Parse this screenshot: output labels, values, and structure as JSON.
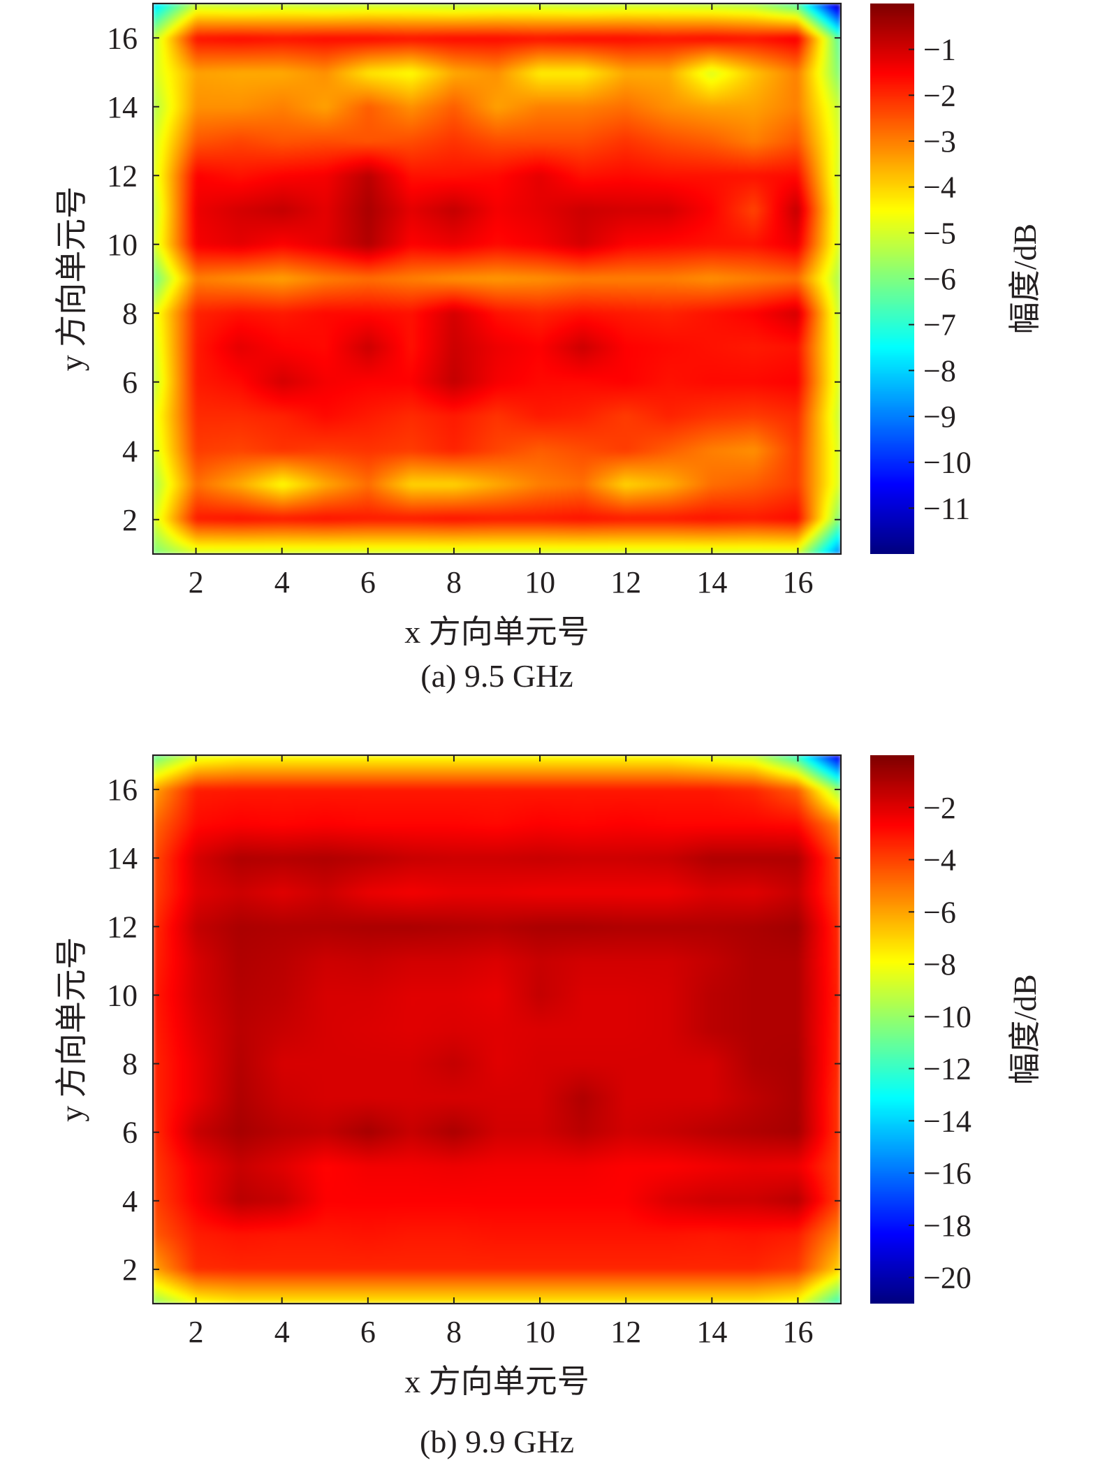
{
  "chart_data": [
    {
      "type": "heatmap",
      "caption": "(a) 9.5 GHz",
      "xlabel": "x 方向单元号",
      "ylabel": "y 方向单元号",
      "xlim": [
        1,
        17
      ],
      "ylim": [
        1,
        17
      ],
      "xticks": [
        2,
        4,
        6,
        8,
        10,
        12,
        14,
        16
      ],
      "yticks": [
        2,
        4,
        6,
        8,
        10,
        12,
        14,
        16
      ],
      "colorbar": {
        "label": "幅度/dB",
        "min": -12,
        "max": 0,
        "ticks": [
          -1,
          -2,
          -3,
          -4,
          -5,
          -6,
          -7,
          -8,
          -9,
          -10,
          -11
        ],
        "colormap": "jet"
      },
      "grid": false,
      "x": [
        1,
        2,
        3,
        4,
        5,
        6,
        7,
        8,
        9,
        10,
        11,
        12,
        13,
        14,
        15,
        16,
        17
      ],
      "y": [
        1,
        2,
        3,
        4,
        5,
        6,
        7,
        8,
        9,
        10,
        11,
        12,
        13,
        14,
        15,
        16,
        17
      ],
      "z": [
        [
          -6,
          -5,
          -5,
          -5,
          -5,
          -5,
          -5,
          -5,
          -5,
          -5,
          -5,
          -5,
          -5,
          -5,
          -5,
          -5,
          -9
        ],
        [
          -5,
          -1.8,
          -1.7,
          -1.8,
          -1.7,
          -1.8,
          -1.8,
          -1.7,
          -1.8,
          -1.8,
          -1.7,
          -1.8,
          -1.8,
          -1.7,
          -1.8,
          -1.6,
          -6
        ],
        [
          -5.5,
          -2.8,
          -3.5,
          -4.5,
          -3.5,
          -2.8,
          -4,
          -4,
          -3.5,
          -3,
          -2.8,
          -4,
          -3.6,
          -2.8,
          -2.6,
          -2.2,
          -5
        ],
        [
          -5,
          -2.2,
          -2.3,
          -2.1,
          -2.2,
          -2.1,
          -2.2,
          -1.9,
          -2.3,
          -2.6,
          -2.4,
          -2.2,
          -2.6,
          -3,
          -3.2,
          -2.2,
          -5
        ],
        [
          -4.8,
          -2,
          -2,
          -1.9,
          -1.6,
          -1.8,
          -2,
          -1.8,
          -2.1,
          -1.8,
          -1.9,
          -2.2,
          -1.9,
          -2.1,
          -2.2,
          -2,
          -5.2
        ],
        [
          -5.2,
          -1.8,
          -1.6,
          -1,
          -1.4,
          -1.5,
          -1.5,
          -0.8,
          -1.4,
          -1.6,
          -1.6,
          -1.5,
          -1.7,
          -1.6,
          -1.6,
          -1.5,
          -5
        ],
        [
          -5,
          -1.8,
          -1.2,
          -1.5,
          -1.6,
          -0.9,
          -1.7,
          -0.9,
          -1.3,
          -1.5,
          -0.9,
          -1.5,
          -1.6,
          -1.7,
          -1.8,
          -1.7,
          -5
        ],
        [
          -4.8,
          -1.9,
          -1.7,
          -1.8,
          -1.6,
          -1.6,
          -1.7,
          -1,
          -1.7,
          -1.9,
          -1.7,
          -1.8,
          -1.9,
          -1.7,
          -1.5,
          -1,
          -5.2
        ],
        [
          -6.2,
          -3,
          -3.2,
          -3.4,
          -3,
          -2.8,
          -3,
          -3.2,
          -3.3,
          -3.2,
          -3,
          -3,
          -3,
          -3.2,
          -3,
          -2.8,
          -5.5
        ],
        [
          -5,
          -1.4,
          -1.2,
          -1.5,
          -1.2,
          -0.6,
          -1.5,
          -1.3,
          -1.6,
          -1.4,
          -1,
          -1.5,
          -1.6,
          -1.7,
          -1.7,
          -1.3,
          -5
        ],
        [
          -5.2,
          -1.3,
          -1,
          -0.8,
          -1.2,
          -0.5,
          -1.2,
          -0.8,
          -1.4,
          -1.2,
          -0.9,
          -1,
          -1,
          -1.5,
          -2.3,
          -0.8,
          -5
        ],
        [
          -4.9,
          -1.5,
          -1.7,
          -1.5,
          -1.4,
          -0.7,
          -1.7,
          -1.7,
          -1.6,
          -1.2,
          -1.7,
          -1.6,
          -1.7,
          -1.7,
          -1.7,
          -1.6,
          -5.1
        ],
        [
          -5,
          -2.5,
          -2.3,
          -2.5,
          -2.4,
          -2.5,
          -2.4,
          -2.1,
          -2.4,
          -2.4,
          -2.4,
          -2.1,
          -2.4,
          -2.6,
          -3,
          -2.5,
          -5
        ],
        [
          -5.4,
          -3.2,
          -3.2,
          -3,
          -3.4,
          -2.6,
          -3.2,
          -2.6,
          -3.4,
          -3,
          -3,
          -2.8,
          -3.2,
          -3.4,
          -3.4,
          -3,
          -5.2
        ],
        [
          -5,
          -3.4,
          -3.5,
          -3.5,
          -3.2,
          -4.2,
          -4.5,
          -3.5,
          -3.2,
          -4.3,
          -4.3,
          -3.5,
          -3.5,
          -4.9,
          -3.8,
          -3,
          -6
        ],
        [
          -5.2,
          -1.7,
          -1.6,
          -1.7,
          -1.6,
          -1.6,
          -1.7,
          -1.6,
          -1.6,
          -1.7,
          -1.6,
          -1.6,
          -1.7,
          -1.6,
          -1.7,
          -1.4,
          -6.5
        ],
        [
          -8,
          -5.2,
          -5.3,
          -5.2,
          -5.3,
          -5.2,
          -5.2,
          -5.3,
          -5.2,
          -5.2,
          -5.3,
          -5.2,
          -5.2,
          -5.3,
          -5.5,
          -6.5,
          -11.5
        ]
      ]
    },
    {
      "type": "heatmap",
      "caption": "(b) 9.9 GHz",
      "xlabel": "x 方向单元号",
      "ylabel": "y 方向单元号",
      "xlim": [
        1,
        17
      ],
      "ylim": [
        1,
        17
      ],
      "xticks": [
        2,
        4,
        6,
        8,
        10,
        12,
        14,
        16
      ],
      "yticks": [
        2,
        4,
        6,
        8,
        10,
        12,
        14,
        16
      ],
      "colorbar": {
        "label": "幅度/dB",
        "min": -21,
        "max": 0,
        "ticks": [
          -2,
          -4,
          -6,
          -8,
          -10,
          -12,
          -14,
          -16,
          -18,
          -20
        ],
        "colormap": "jet"
      },
      "grid": false,
      "x": [
        1,
        2,
        3,
        4,
        5,
        6,
        7,
        8,
        9,
        10,
        11,
        12,
        13,
        14,
        15,
        16,
        17
      ],
      "y": [
        1,
        2,
        3,
        4,
        5,
        6,
        7,
        8,
        9,
        10,
        11,
        12,
        13,
        14,
        15,
        16,
        17
      ],
      "z": [
        [
          -10,
          -8,
          -7.5,
          -7.5,
          -7.5,
          -7.5,
          -7.5,
          -7.5,
          -7.5,
          -7.5,
          -7.5,
          -7.5,
          -7.5,
          -7.5,
          -7.5,
          -8,
          -12
        ],
        [
          -6,
          -3.5,
          -3.4,
          -3.4,
          -3.4,
          -3.4,
          -3.4,
          -3.4,
          -3.4,
          -3.4,
          -3.4,
          -3.4,
          -3.4,
          -3.4,
          -3.4,
          -3.8,
          -7
        ],
        [
          -4.5,
          -3.2,
          -3,
          -3.1,
          -3.1,
          -3,
          -3.1,
          -3.1,
          -3,
          -3,
          -3,
          -3,
          -3,
          -3.1,
          -3,
          -3.2,
          -5.5
        ],
        [
          -4,
          -2.5,
          -1.2,
          -1.5,
          -2.6,
          -2.6,
          -2.6,
          -2.6,
          -2.6,
          -2.6,
          -2.6,
          -2.6,
          -1.9,
          -1.6,
          -1.6,
          -1.2,
          -4
        ],
        [
          -3.8,
          -2.4,
          -1.5,
          -2,
          -2.7,
          -2.4,
          -2.4,
          -2.3,
          -2.4,
          -2.4,
          -2.4,
          -2.6,
          -2.6,
          -2.4,
          -2.2,
          -2.3,
          -4
        ],
        [
          -3.6,
          -1.5,
          -0.8,
          -1.2,
          -1.4,
          -0.8,
          -1.5,
          -0.9,
          -1.7,
          -1.7,
          -1.2,
          -1.7,
          -1.5,
          -1.2,
          -1,
          -0.8,
          -3.8
        ],
        [
          -3.4,
          -2.2,
          -1,
          -1.6,
          -1.8,
          -1.8,
          -1.8,
          -1.8,
          -1.8,
          -1.8,
          -1,
          -1.8,
          -1.8,
          -1.8,
          -1.3,
          -0.9,
          -3.8
        ],
        [
          -3.4,
          -2.2,
          -1.1,
          -1.8,
          -1.8,
          -1.8,
          -1.8,
          -1.4,
          -2,
          -1.8,
          -1.8,
          -1.8,
          -1.8,
          -1.8,
          -1,
          -0.9,
          -3.6
        ],
        [
          -3.3,
          -2,
          -1.2,
          -1.5,
          -1.8,
          -1.9,
          -2,
          -1.9,
          -2,
          -1.9,
          -1.9,
          -1.9,
          -1.8,
          -1.2,
          -1,
          -1,
          -3.5
        ],
        [
          -3.2,
          -1.8,
          -1.1,
          -1.3,
          -1.8,
          -1.8,
          -2,
          -2,
          -2.2,
          -1.4,
          -1.9,
          -1.9,
          -1.8,
          -1.2,
          -1,
          -1,
          -3.4
        ],
        [
          -3.4,
          -1.8,
          -1,
          -1.2,
          -1.6,
          -1.5,
          -1.7,
          -1.7,
          -1.9,
          -1.5,
          -1.7,
          -1.7,
          -1.7,
          -1.4,
          -1,
          -1,
          -3.5
        ],
        [
          -3.6,
          -1.4,
          -0.9,
          -1,
          -1,
          -0.9,
          -0.9,
          -1,
          -1.1,
          -0.9,
          -0.9,
          -1,
          -1,
          -1,
          -0.9,
          -0.7,
          -3.6
        ],
        [
          -4,
          -2,
          -1.6,
          -2,
          -1.6,
          -2.2,
          -2.4,
          -2.2,
          -2.2,
          -2.3,
          -2.3,
          -2.3,
          -2.3,
          -1.9,
          -2,
          -1.5,
          -4
        ],
        [
          -4.2,
          -1.8,
          -1,
          -1.1,
          -1,
          -1.2,
          -1.5,
          -1.6,
          -1.6,
          -1.5,
          -1.6,
          -1.6,
          -1.5,
          -1,
          -1,
          -1,
          -4.2
        ],
        [
          -4.8,
          -2.8,
          -2.6,
          -2.7,
          -2.6,
          -2.7,
          -2.7,
          -2.7,
          -2.8,
          -2.6,
          -2.7,
          -2.6,
          -2.7,
          -2.7,
          -2.7,
          -2.8,
          -5.5
        ],
        [
          -6,
          -3.2,
          -3.1,
          -3.1,
          -3.1,
          -3.1,
          -3.1,
          -3.1,
          -3.1,
          -3.1,
          -3.1,
          -3.1,
          -3.1,
          -3.1,
          -3.4,
          -4.5,
          -10
        ],
        [
          -11,
          -8.5,
          -8,
          -8,
          -8,
          -8,
          -8,
          -8,
          -8,
          -8,
          -8,
          -8,
          -8,
          -8.5,
          -9,
          -12,
          -19
        ]
      ]
    }
  ]
}
